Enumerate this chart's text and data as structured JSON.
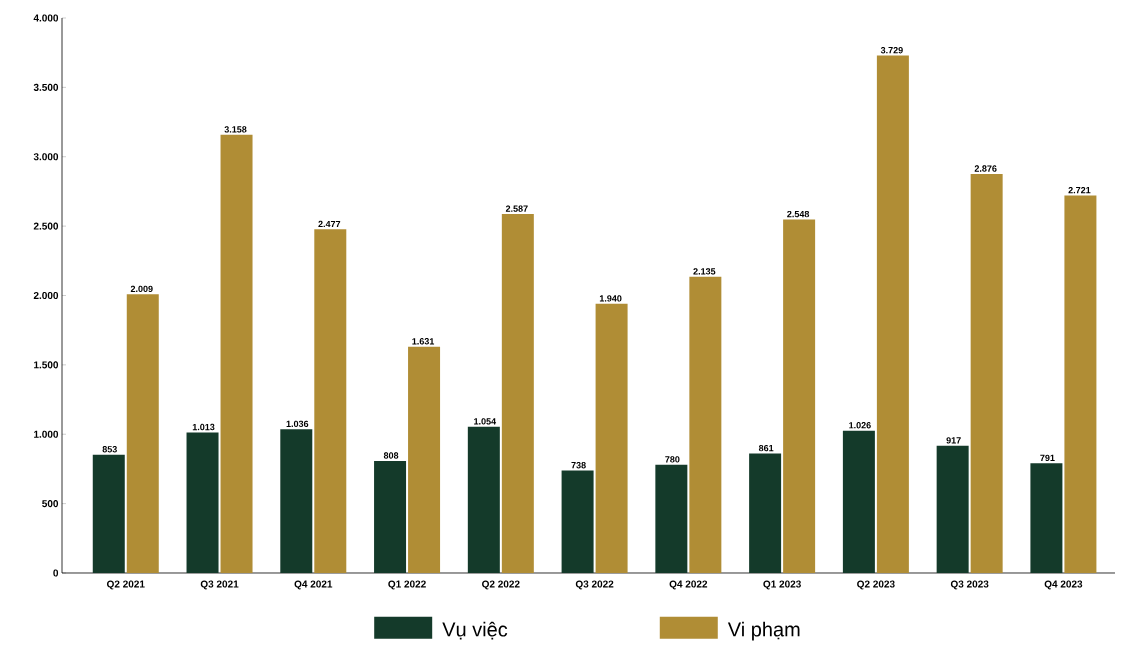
{
  "chart_data": {
    "type": "bar",
    "categories": [
      "Q2 2021",
      "Q3 2021",
      "Q4 2021",
      "Q1 2022",
      "Q2 2022",
      "Q3 2022",
      "Q4 2022",
      "Q1 2023",
      "Q2 2023",
      "Q3 2023",
      "Q4 2023"
    ],
    "series": [
      {
        "name": "Vụ việc",
        "color": "#143a2a",
        "values": [
          853,
          1013,
          1036,
          808,
          1054,
          738,
          780,
          861,
          1026,
          917,
          791
        ],
        "value_labels": [
          "853",
          "1.013",
          "1.036",
          "808",
          "1.054",
          "738",
          "780",
          "861",
          "1.026",
          "917",
          "791"
        ]
      },
      {
        "name": "Vi phạm",
        "color": "#b08d35",
        "values": [
          2009,
          3158,
          2477,
          1631,
          2587,
          1940,
          2135,
          2548,
          3729,
          2876,
          2721
        ],
        "value_labels": [
          "2.009",
          "3.158",
          "2.477",
          "1.631",
          "2.587",
          "1.940",
          "2.135",
          "2.548",
          "3.729",
          "2.876",
          "2.721"
        ]
      }
    ],
    "ylim": [
      0,
      4000
    ],
    "yticks": [
      0,
      {
        "value": 500,
        "label": "500"
      },
      {
        "value": 1000,
        "label": "1.000"
      },
      {
        "value": 1500,
        "label": "1.500"
      },
      {
        "value": 2000,
        "label": "2.000"
      },
      {
        "value": 2500,
        "label": "2.500"
      },
      {
        "value": 3000,
        "label": "3.000"
      },
      {
        "value": 3500,
        "label": "3.500"
      },
      {
        "value": 4000,
        "label": "4.000"
      }
    ],
    "grid": false,
    "legend": "bottom"
  }
}
